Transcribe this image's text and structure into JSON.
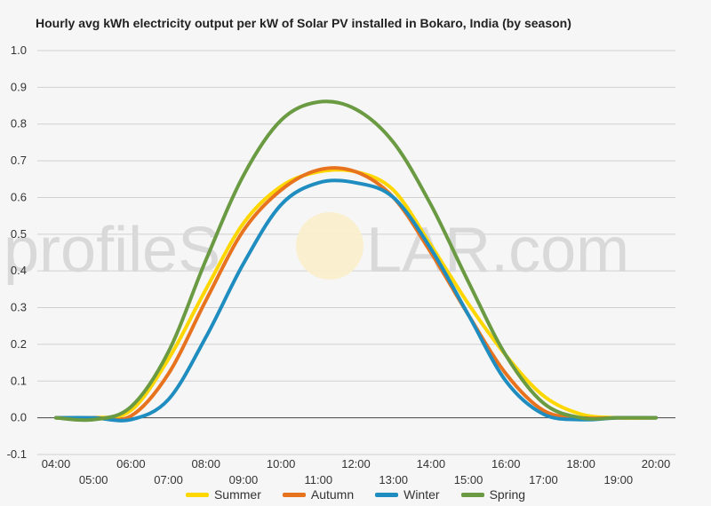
{
  "watermark": {
    "text_left": "profile",
    "text_right": "LAR.com",
    "text_s": "S"
  },
  "chart_data": {
    "type": "line",
    "title": "Hourly avg kWh electricity output per kW of Solar PV installed in Bokaro, India (by season)",
    "xlabel": "",
    "ylabel": "",
    "ylim": [
      -0.1,
      1.0
    ],
    "yticks": [
      "-0.1",
      "0.0",
      "0.1",
      "0.2",
      "0.3",
      "0.4",
      "0.5",
      "0.6",
      "0.7",
      "0.8",
      "0.9",
      "1.0"
    ],
    "x": [
      "04:00",
      "05:00",
      "06:00",
      "07:00",
      "08:00",
      "09:00",
      "10:00",
      "11:00",
      "12:00",
      "13:00",
      "14:00",
      "15:00",
      "16:00",
      "17:00",
      "18:00",
      "19:00",
      "20:00"
    ],
    "grid": true,
    "legend_position": "bottom",
    "series": [
      {
        "name": "Summer",
        "color": "#ffd700",
        "values": [
          0.0,
          0.0,
          0.02,
          0.16,
          0.35,
          0.53,
          0.63,
          0.67,
          0.67,
          0.62,
          0.47,
          0.31,
          0.17,
          0.06,
          0.01,
          0.0,
          0.0
        ]
      },
      {
        "name": "Autumn",
        "color": "#e8731e",
        "values": [
          0.0,
          0.0,
          0.005,
          0.12,
          0.32,
          0.51,
          0.62,
          0.675,
          0.67,
          0.6,
          0.45,
          0.28,
          0.12,
          0.02,
          0.0,
          0.0,
          0.0
        ]
      },
      {
        "name": "Winter",
        "color": "#1f8dbf",
        "values": [
          0.0,
          0.0,
          -0.005,
          0.05,
          0.22,
          0.42,
          0.58,
          0.64,
          0.64,
          0.6,
          0.46,
          0.28,
          0.1,
          0.01,
          -0.005,
          0.0,
          0.0
        ]
      },
      {
        "name": "Spring",
        "color": "#6a9a42",
        "values": [
          0.0,
          -0.005,
          0.03,
          0.18,
          0.43,
          0.66,
          0.81,
          0.86,
          0.84,
          0.75,
          0.58,
          0.37,
          0.17,
          0.04,
          0.0,
          0.0,
          0.0
        ]
      }
    ]
  }
}
